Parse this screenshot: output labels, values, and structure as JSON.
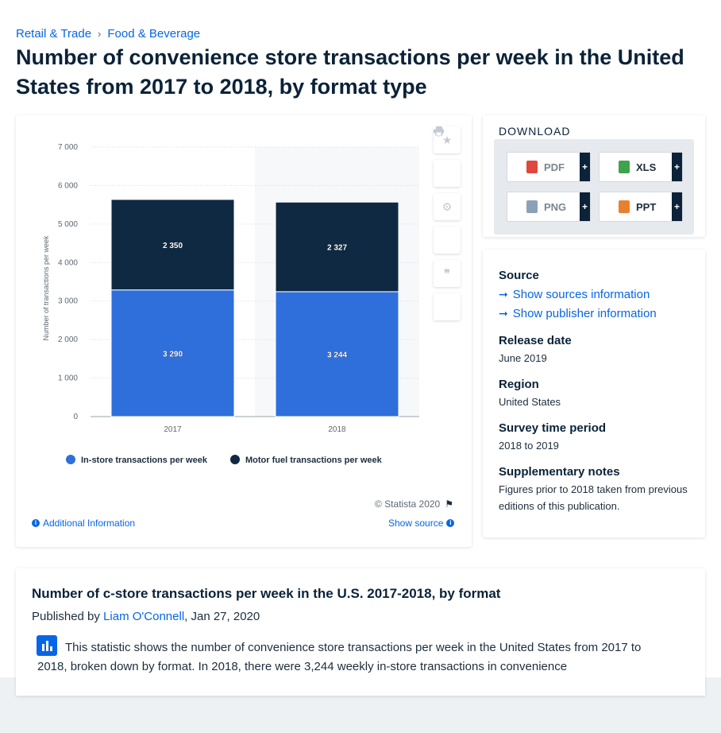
{
  "breadcrumb": {
    "items": [
      "Retail & Trade",
      "Food & Beverage"
    ]
  },
  "page_title": "Number of convenience store transactions per week in the United States from 2017 to 2018, by format type",
  "chart": {
    "copyright": "© Statista 2020",
    "additional_info": "Additional Information",
    "show_source": "Show source"
  },
  "chart_data": {
    "type": "bar",
    "stacked": true,
    "categories": [
      "2017",
      "2018"
    ],
    "series": [
      {
        "name": "In-store transactions per week",
        "values": [
          3290,
          3244
        ],
        "labels": [
          "3 290",
          "3 244"
        ],
        "color": "#2f6fdc"
      },
      {
        "name": "Motor fuel transactions per week",
        "values": [
          2350,
          2327
        ],
        "labels": [
          "2 350",
          "2 327"
        ],
        "color": "#0f2942"
      }
    ],
    "ylabel": "Number of transactions per week",
    "xlabel": "",
    "ylim": [
      0,
      7000
    ],
    "yticks": [
      0,
      1000,
      2000,
      3000,
      4000,
      5000,
      6000,
      7000
    ],
    "ytick_labels": [
      "0",
      "1 000",
      "2 000",
      "3 000",
      "4 000",
      "5 000",
      "6 000",
      "7 000"
    ],
    "grid": true,
    "legend": "bottom"
  },
  "toolbar": {
    "icons": [
      "star-icon",
      "bell-icon",
      "gear-icon",
      "share-icon",
      "quote-icon",
      "print-icon"
    ]
  },
  "download": {
    "title": "DOWNLOAD",
    "buttons": [
      {
        "label": "PDF",
        "color": "#e0473d"
      },
      {
        "label": "XLS",
        "color": "#3fa34d"
      },
      {
        "label": "PNG",
        "color": "#8aa2b8"
      },
      {
        "label": "PPT",
        "color": "#e8812f"
      }
    ],
    "plus": "+"
  },
  "meta": {
    "source_heading": "Source",
    "show_sources": "Show sources information",
    "show_publisher": "Show publisher information",
    "release_heading": "Release date",
    "release_value": "June 2019",
    "region_heading": "Region",
    "region_value": "United States",
    "survey_heading": "Survey time period",
    "survey_value": "2018 to 2019",
    "notes_heading": "Supplementary notes",
    "notes_value": "Figures prior to 2018 taken from previous editions of this publication."
  },
  "description": {
    "title": "Number of c-store transactions per week in the U.S. 2017-2018, by format",
    "published_by": "Published by",
    "author": "Liam O'Connell",
    "date": ", Jan 27, 2020",
    "text": "This statistic shows the number of convenience store transactions per week in the United States from 2017 to 2018, broken down by format. In 2018, there were 3,244 weekly in-store transactions in convenience"
  },
  "colors": {
    "accent": "#0666e5",
    "title": "#0b2238"
  }
}
